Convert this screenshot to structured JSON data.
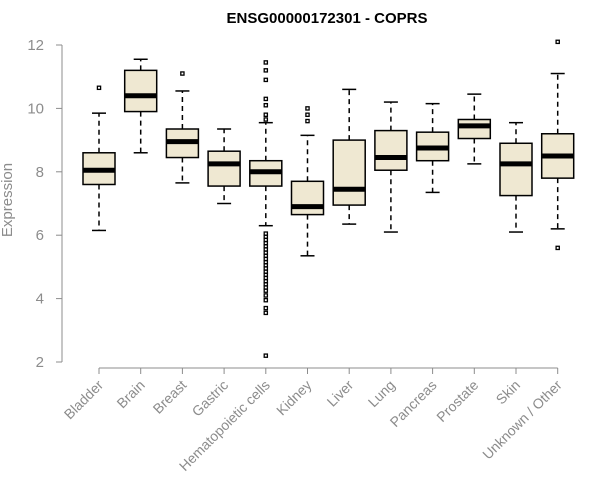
{
  "chart_data": {
    "type": "boxplot",
    "title": "ENSG00000172301 - COPRS",
    "ylabel": "Expression",
    "ylim": [
      2,
      12
    ],
    "yticks": [
      "2",
      "4",
      "6",
      "8",
      "10",
      "12"
    ],
    "box_fill": "#efe8d2",
    "categories": [
      "Bladder",
      "Brain",
      "Breast",
      "Gastric",
      "Hematopoietic cells",
      "Kidney",
      "Liver",
      "Lung",
      "Pancreas",
      "Prostate",
      "Skin",
      "Unknown / Other"
    ],
    "series": [
      {
        "whisker_low": 6.15,
        "q1": 7.6,
        "median": 8.05,
        "q3": 8.6,
        "whisker_high": 9.85,
        "outliers": [
          10.65
        ]
      },
      {
        "whisker_low": 8.6,
        "q1": 9.9,
        "median": 10.4,
        "q3": 11.2,
        "whisker_high": 11.55,
        "outliers": []
      },
      {
        "whisker_low": 7.65,
        "q1": 8.45,
        "median": 8.95,
        "q3": 9.35,
        "whisker_high": 10.55,
        "outliers": [
          11.1
        ]
      },
      {
        "whisker_low": 7.0,
        "q1": 7.55,
        "median": 8.25,
        "q3": 8.65,
        "whisker_high": 9.35,
        "outliers": []
      },
      {
        "whisker_low": 6.3,
        "q1": 7.55,
        "median": 8.0,
        "q3": 8.35,
        "whisker_high": 9.55,
        "outliers": [
          11.45,
          11.2,
          10.9,
          10.3,
          10.1,
          9.8,
          9.65,
          6.05,
          5.95,
          5.85,
          5.75,
          5.65,
          5.55,
          5.45,
          5.35,
          5.25,
          5.15,
          5.05,
          4.95,
          4.85,
          4.75,
          4.65,
          4.55,
          4.45,
          4.35,
          4.25,
          4.1,
          3.95,
          3.7,
          3.55,
          2.2
        ]
      },
      {
        "whisker_low": 5.35,
        "q1": 6.65,
        "median": 6.9,
        "q3": 7.7,
        "whisker_high": 9.15,
        "outliers": [
          10.0,
          9.8,
          9.6
        ]
      },
      {
        "whisker_low": 6.35,
        "q1": 6.95,
        "median": 7.45,
        "q3": 9.0,
        "whisker_high": 10.6,
        "outliers": []
      },
      {
        "whisker_low": 6.1,
        "q1": 8.05,
        "median": 8.45,
        "q3": 9.3,
        "whisker_high": 10.2,
        "outliers": []
      },
      {
        "whisker_low": 7.35,
        "q1": 8.35,
        "median": 8.75,
        "q3": 9.25,
        "whisker_high": 10.15,
        "outliers": []
      },
      {
        "whisker_low": 8.25,
        "q1": 9.05,
        "median": 9.45,
        "q3": 9.65,
        "whisker_high": 10.45,
        "outliers": []
      },
      {
        "whisker_low": 6.1,
        "q1": 7.25,
        "median": 8.25,
        "q3": 8.9,
        "whisker_high": 9.55,
        "outliers": []
      },
      {
        "whisker_low": 6.2,
        "q1": 7.8,
        "median": 8.5,
        "q3": 9.2,
        "whisker_high": 11.1,
        "outliers": [
          12.1,
          5.6
        ]
      }
    ]
  }
}
